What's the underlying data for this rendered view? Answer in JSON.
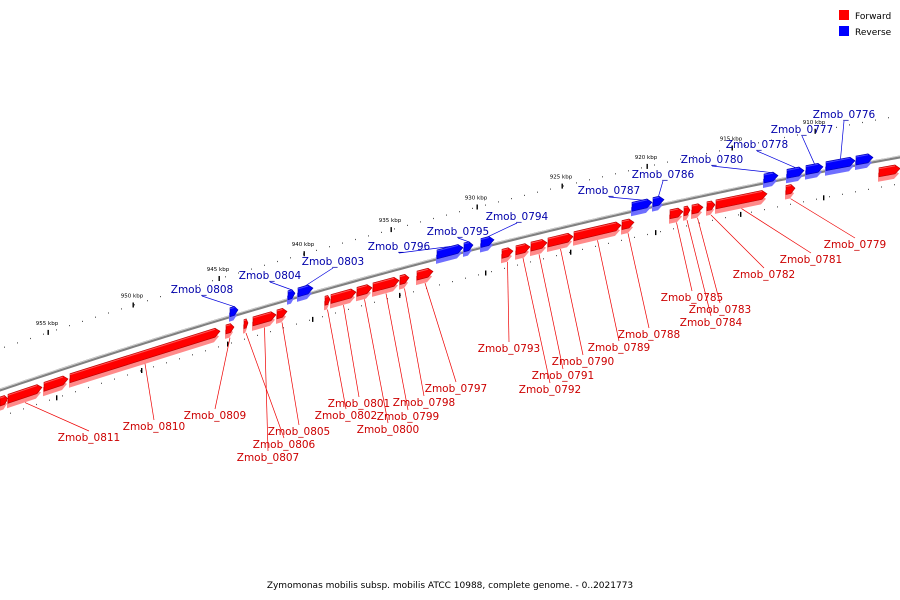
{
  "legend": {
    "items": [
      {
        "label": "Forward",
        "color": "#ff0000"
      },
      {
        "label": "Reverse",
        "color": "#0000ff"
      }
    ]
  },
  "caption": "Zymomonas mobilis subsp. mobilis ATCC 10988, complete genome. - 0..2021773",
  "colors": {
    "forward": "#ff0000",
    "forward_dark": "#b30000",
    "reverse": "#0000ff",
    "reverse_dark": "#0000a8",
    "backbone": "#808080",
    "forward_label": "#cc0000",
    "reverse_label": "#0000aa"
  },
  "scale_ticks_kbp": [
    "955 kbp",
    "950 kbp",
    "945 kbp",
    "940 kbp",
    "935 kbp",
    "930 kbp",
    "925 kbp",
    "920 kbp",
    "915 kbp",
    "910 kbp"
  ],
  "forward_genes": [
    "Zmob_0811",
    "Zmob_0810",
    "Zmob_0809",
    "Zmob_0806",
    "Zmob_0807",
    "Zmob_0805",
    "Zmob_0802",
    "Zmob_0801",
    "Zmob_0800",
    "Zmob_0799",
    "Zmob_0798",
    "Zmob_0797",
    "Zmob_0793",
    "Zmob_0792",
    "Zmob_0791",
    "Zmob_0790",
    "Zmob_0789",
    "Zmob_0788",
    "Zmob_0785",
    "Zmob_0784",
    "Zmob_0783",
    "Zmob_0782",
    "Zmob_0781",
    "Zmob_0779"
  ],
  "reverse_genes": [
    "Zmob_0808",
    "Zmob_0804",
    "Zmob_0803",
    "Zmob_0796",
    "Zmob_0795",
    "Zmob_0794",
    "Zmob_0787",
    "Zmob_0786",
    "Zmob_0780",
    "Zmob_0778",
    "Zmob_0777",
    "Zmob_0776"
  ]
}
